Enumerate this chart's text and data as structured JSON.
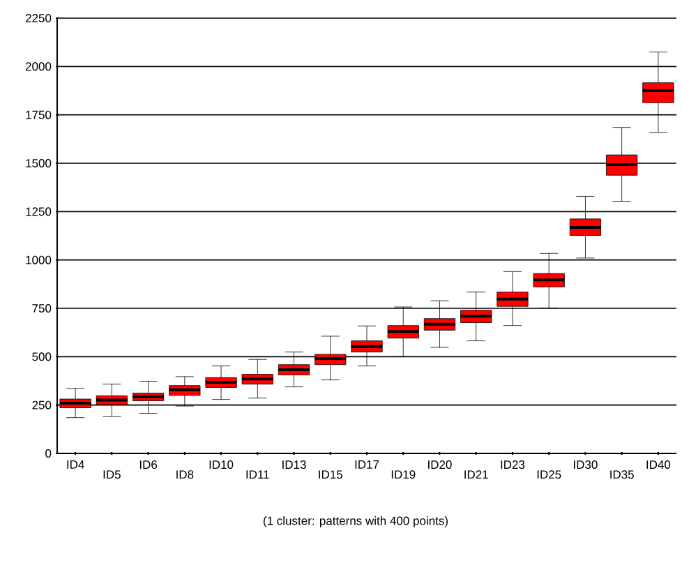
{
  "chart_data": {
    "type": "box",
    "categories": [
      "ID4",
      "ID5",
      "ID6",
      "ID8",
      "ID10",
      "ID11",
      "ID13",
      "ID15",
      "ID17",
      "ID19",
      "ID20",
      "ID21",
      "ID23",
      "ID25",
      "ID30",
      "ID35",
      "ID40"
    ],
    "boxes": [
      {
        "low": 185,
        "q1": 236,
        "median": 260,
        "q3": 281,
        "high": 336
      },
      {
        "low": 190,
        "q1": 252,
        "median": 276,
        "q3": 298,
        "high": 358
      },
      {
        "low": 207,
        "q1": 272,
        "median": 293,
        "q3": 312,
        "high": 373
      },
      {
        "low": 245,
        "q1": 300,
        "median": 329,
        "q3": 351,
        "high": 397
      },
      {
        "low": 279,
        "q1": 341,
        "median": 368,
        "q3": 392,
        "high": 452
      },
      {
        "low": 286,
        "q1": 358,
        "median": 385,
        "q3": 409,
        "high": 486
      },
      {
        "low": 344,
        "q1": 406,
        "median": 433,
        "q3": 459,
        "high": 524
      },
      {
        "low": 380,
        "q1": 459,
        "median": 490,
        "q3": 512,
        "high": 606
      },
      {
        "low": 452,
        "q1": 524,
        "median": 553,
        "q3": 582,
        "high": 659
      },
      {
        "low": 500,
        "q1": 596,
        "median": 630,
        "q3": 661,
        "high": 757
      },
      {
        "low": 548,
        "q1": 637,
        "median": 668,
        "q3": 697,
        "high": 789
      },
      {
        "low": 582,
        "q1": 676,
        "median": 709,
        "q3": 740,
        "high": 834
      },
      {
        "low": 661,
        "q1": 760,
        "median": 798,
        "q3": 834,
        "high": 940
      },
      {
        "low": 752,
        "q1": 861,
        "median": 897,
        "q3": 930,
        "high": 1034
      },
      {
        "low": 1010,
        "q1": 1127,
        "median": 1168,
        "q3": 1212,
        "high": 1329
      },
      {
        "low": 1303,
        "q1": 1438,
        "median": 1493,
        "q3": 1543,
        "high": 1685
      },
      {
        "low": 1659,
        "q1": 1813,
        "median": 1875,
        "q3": 1916,
        "high": 2075
      }
    ],
    "color": "#ff0000",
    "ylim": [
      0,
      2250
    ],
    "yticks": [
      0,
      250,
      500,
      750,
      1000,
      1250,
      1500,
      1750,
      2000,
      2250
    ],
    "grid": "y",
    "annotations": [
      "(1 cluster: patterns with 400 points)"
    ]
  }
}
